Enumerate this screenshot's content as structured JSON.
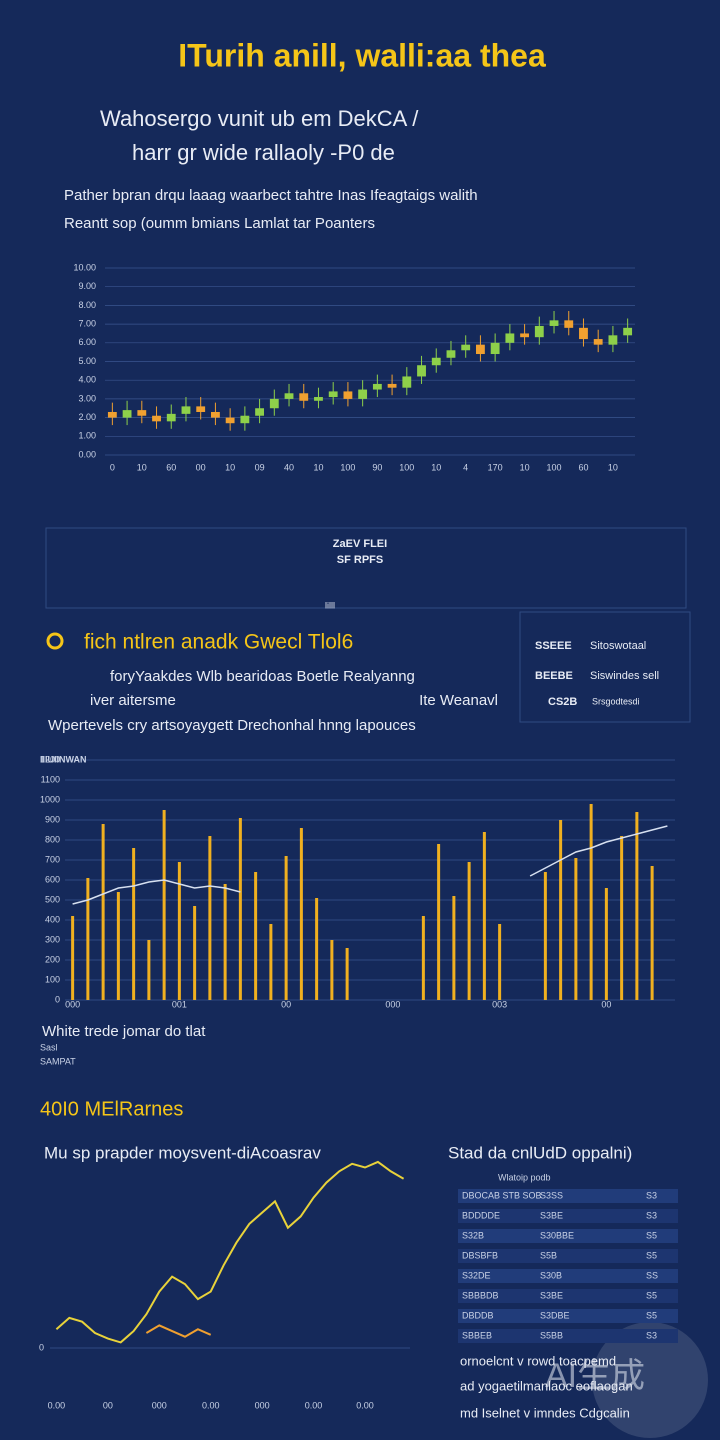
{
  "header": {
    "title": "ITurih anill, walli:aa thea",
    "subtitle": [
      "Wahosergo vunit ub em DekCA /",
      "harr gr wide rallaoly -P0 de"
    ],
    "intro": [
      "Pather bpran drqu laaag waarbect tahtre Inas Ifeagtaigs walith",
      "Reantt sop (oumm bmians Lamlat tar Poanters"
    ]
  },
  "chart_data": [
    {
      "type": "candlestick",
      "categories": [
        "0",
        null,
        "10",
        null,
        "60",
        null,
        "00",
        null,
        "10",
        null,
        "09",
        null,
        "40",
        null,
        "10",
        null,
        "100",
        null,
        "90",
        null,
        "100",
        null,
        "10",
        null,
        "4",
        null,
        "170",
        null,
        "10",
        null,
        "100",
        null,
        "60",
        null,
        "10",
        null
      ],
      "open": [
        2.3,
        2.0,
        2.4,
        2.1,
        1.8,
        2.2,
        2.6,
        2.3,
        2.0,
        1.7,
        2.1,
        2.5,
        3.0,
        3.3,
        2.9,
        3.1,
        3.4,
        3.0,
        3.5,
        3.8,
        3.6,
        4.2,
        4.8,
        5.2,
        5.6,
        5.9,
        5.4,
        6.0,
        6.5,
        6.3,
        6.9,
        7.2,
        6.8,
        6.2,
        5.9,
        6.4
      ],
      "high": [
        2.8,
        2.9,
        2.9,
        2.6,
        2.7,
        3.1,
        3.1,
        2.8,
        2.5,
        2.6,
        3.0,
        3.5,
        3.8,
        3.8,
        3.6,
        3.9,
        3.9,
        4.0,
        4.3,
        4.3,
        4.7,
        5.3,
        5.7,
        6.1,
        6.4,
        6.4,
        6.5,
        7.0,
        7.0,
        7.4,
        7.7,
        7.7,
        7.3,
        6.7,
        6.9,
        7.3
      ],
      "low": [
        1.6,
        1.6,
        1.7,
        1.4,
        1.4,
        1.8,
        1.9,
        1.6,
        1.3,
        1.3,
        1.7,
        2.1,
        2.6,
        2.5,
        2.5,
        2.7,
        2.6,
        2.6,
        3.1,
        3.2,
        3.2,
        3.8,
        4.4,
        4.8,
        5.2,
        5.0,
        5.0,
        5.6,
        5.9,
        5.9,
        6.5,
        6.4,
        5.8,
        5.5,
        5.5,
        6.0
      ],
      "close": [
        2.0,
        2.4,
        2.1,
        1.8,
        2.2,
        2.6,
        2.3,
        2.0,
        1.7,
        2.1,
        2.5,
        3.0,
        3.3,
        2.9,
        3.1,
        3.4,
        3.0,
        3.5,
        3.8,
        3.6,
        4.2,
        4.8,
        5.2,
        5.6,
        5.9,
        5.4,
        6.0,
        6.5,
        6.3,
        6.9,
        7.2,
        6.8,
        6.2,
        5.9,
        6.4,
        6.8
      ],
      "up_color": "#8ed04a",
      "down_color": "#f0a030",
      "ylim": [
        0,
        10
      ],
      "yticks": [
        {
          "value": 0,
          "label": "0.00"
        },
        {
          "value": 1,
          "label": "1.00"
        },
        {
          "value": 2,
          "label": "2.00"
        },
        {
          "value": 3,
          "label": "3.00"
        },
        {
          "value": 4,
          "label": "4.00"
        },
        {
          "value": 5,
          "label": "5.00"
        },
        {
          "value": 6,
          "label": "6.00"
        },
        {
          "value": 7,
          "label": "7.00"
        },
        {
          "value": 8,
          "label": "8.00"
        },
        {
          "value": 9,
          "label": "9.00"
        },
        {
          "value": 10,
          "label": "10.00"
        }
      ],
      "grid": true
    },
    {
      "type": "barline",
      "ylabel": "IIIUIINWAN",
      "categories": [
        "000",
        null,
        null,
        null,
        null,
        null,
        null,
        "001",
        null,
        null,
        null,
        null,
        null,
        null,
        "00",
        null,
        null,
        null,
        null,
        null,
        null,
        "000",
        null,
        null,
        null,
        null,
        null,
        null,
        "003",
        null,
        null,
        null,
        null,
        null,
        null,
        "00",
        null,
        null,
        null,
        null
      ],
      "values": [
        420,
        610,
        880,
        540,
        760,
        300,
        950,
        690,
        470,
        820,
        580,
        910,
        640,
        380,
        720,
        860,
        510,
        300,
        260,
        0,
        0,
        0,
        0,
        420,
        780,
        520,
        690,
        840,
        380,
        0,
        0,
        640,
        900,
        710,
        980,
        560,
        820,
        940,
        670,
        0
      ],
      "color": "#f0b020",
      "line": {
        "color": "#d7e0f0",
        "values": [
          480,
          500,
          530,
          560,
          570,
          590,
          600,
          580,
          560,
          570,
          560,
          540,
          null,
          null,
          null,
          null,
          null,
          null,
          null,
          null,
          null,
          null,
          null,
          null,
          null,
          null,
          null,
          null,
          null,
          null,
          620,
          660,
          700,
          740,
          760,
          790,
          810,
          830,
          850,
          870
        ]
      },
      "ylim": [
        0,
        1200
      ],
      "yticks": [
        0,
        100,
        200,
        300,
        400,
        500,
        600,
        700,
        800,
        900,
        1000,
        1100,
        1200
      ],
      "grid": true
    },
    {
      "type": "line",
      "categories": [
        "0.00",
        null,
        null,
        null,
        "00",
        null,
        null,
        null,
        "000",
        null,
        null,
        null,
        "0.00",
        null,
        null,
        null,
        "000",
        null,
        null,
        null,
        "0.00",
        null,
        null,
        null,
        "0.00",
        null,
        null,
        null
      ],
      "lines": [
        {
          "color": "#e8d23a",
          "values": [
            10,
            16,
            14,
            8,
            5,
            3,
            9,
            18,
            30,
            38,
            34,
            26,
            30,
            44,
            56,
            66,
            72,
            78,
            64,
            70,
            80,
            88,
            94,
            98,
            96,
            99,
            94,
            90
          ]
        },
        {
          "color": "#f0a030",
          "values": [
            null,
            null,
            null,
            null,
            null,
            null,
            null,
            8,
            12,
            9,
            6,
            10,
            7,
            null,
            null,
            null,
            null,
            null,
            null,
            null,
            null,
            null,
            null,
            null,
            null,
            null,
            null,
            null
          ]
        }
      ],
      "ylim": [
        -25,
        100
      ],
      "yticks": [
        0
      ],
      "grid": true
    }
  ],
  "box": {
    "lines": [
      "ZaEV FLEI",
      "SF RPFS"
    ],
    "tag": "lilll"
  },
  "section2": {
    "heading": "fich ntlren anadk Gwecl Tlol6",
    "lines": [
      "foryYaakdes Wlb bearidoas Boetle Realyanng",
      "iver aitersme",
      "Ite Weanavl",
      "Wpertevels cry artsoyaygett Drechonhal hnng lapouces"
    ],
    "panel": [
      [
        "SSEEE",
        "Sitoswotaal"
      ],
      [
        "BEEBE",
        "Siswindes sell"
      ],
      [
        "CS2B",
        "Srsgodtesdi"
      ]
    ]
  },
  "notes": [
    "White trede jomar do tlat",
    "Sasl",
    "SAMPAT"
  ],
  "section3": {
    "heading": "40I0 MElRarnes",
    "subtitle": "Mu sp prapder moysvent-diAcoasrav",
    "right_heading": "Stad da cnlUdD oppalni)",
    "table": {
      "header": "Wlatoip podb",
      "rows": [
        [
          "DBOCAB STB SOB",
          "S3SS",
          "S3"
        ],
        [
          "BDDDDE",
          "S3BE",
          "S3"
        ],
        [
          "S32B",
          "S30BBE",
          "S5"
        ],
        [
          "DBSBFB",
          "S5B",
          "S5"
        ],
        [
          "S32DE",
          "S30B",
          "SS"
        ],
        [
          "SBBBDB",
          "S3BE",
          "S5"
        ],
        [
          "DBDDB",
          "S3DBE",
          "S5"
        ],
        [
          "SBBEB",
          "S5BB",
          "S3"
        ]
      ]
    }
  },
  "footer": [
    "ornoelcnt v rowd toacpemd",
    "ad yogaetilmanlaoc eoflaogan",
    "md Iselnet v imndes Cdgcalin"
  ],
  "watermark": "AI生成"
}
